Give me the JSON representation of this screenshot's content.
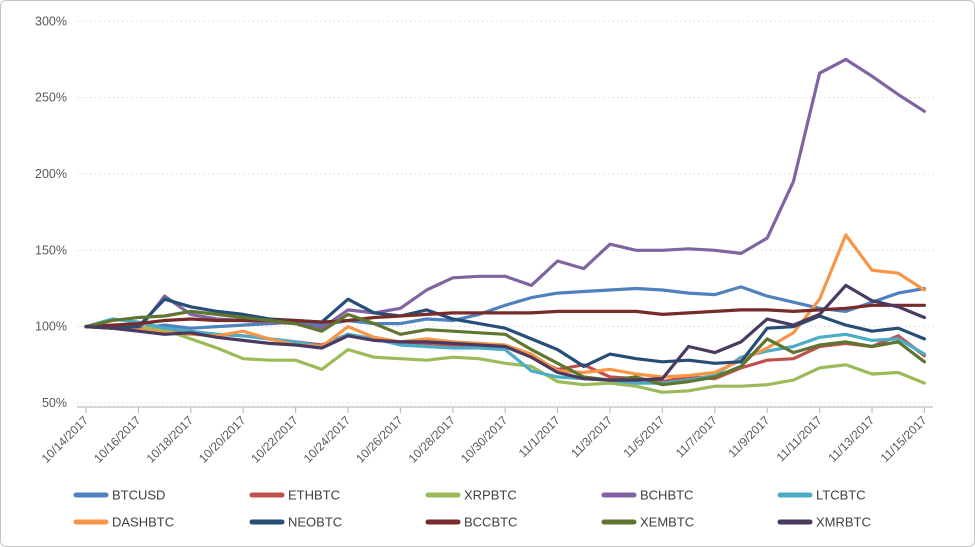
{
  "chart_data": {
    "type": "line",
    "title": "",
    "x_dates": [
      "10/14/2017",
      "10/15/2017",
      "10/16/2017",
      "10/17/2017",
      "10/18/2017",
      "10/19/2017",
      "10/20/2017",
      "10/21/2017",
      "10/22/2017",
      "10/23/2017",
      "10/24/2017",
      "10/25/2017",
      "10/26/2017",
      "10/27/2017",
      "10/28/2017",
      "10/29/2017",
      "10/30/2017",
      "10/31/2017",
      "11/1/2017",
      "11/2/2017",
      "11/3/2017",
      "11/4/2017",
      "11/5/2017",
      "11/6/2017",
      "11/7/2017",
      "11/8/2017",
      "11/9/2017",
      "11/10/2017",
      "11/11/2017",
      "11/12/2017",
      "11/13/2017",
      "11/14/2017",
      "11/15/2017"
    ],
    "x_tick_labels": [
      "10/14/2017",
      "10/16/2017",
      "10/18/2017",
      "10/20/2017",
      "10/22/2017",
      "10/24/2017",
      "10/26/2017",
      "10/28/2017",
      "10/30/2017",
      "11/1/2017",
      "11/3/2017",
      "11/5/2017",
      "11/7/2017",
      "11/9/2017",
      "11/11/2017",
      "11/13/2017",
      "11/15/2017"
    ],
    "y_tick_labels": [
      "300%",
      "250%",
      "200%",
      "150%",
      "100%",
      "50%"
    ],
    "y_axis": {
      "min": 50,
      "max": 300,
      "step": 50,
      "unit": "%"
    },
    "grid": "horizontal-dotted",
    "legend_position": "bottom",
    "legend_rows": 2,
    "series": [
      {
        "name": "BTCUSD",
        "color": "#4E81BD",
        "values": [
          100,
          100,
          99,
          101,
          99,
          100,
          101,
          102,
          103,
          101,
          104,
          102,
          102,
          105,
          104,
          108,
          114,
          119,
          122,
          123,
          124,
          125,
          124,
          122,
          121,
          126,
          120,
          116,
          112,
          110,
          116,
          122,
          125
        ]
      },
      {
        "name": "ETHBTC",
        "color": "#C0504D",
        "values": [
          100,
          100,
          99,
          97,
          96,
          95,
          94,
          92,
          90,
          88,
          95,
          92,
          90,
          89,
          88,
          88,
          87,
          80,
          72,
          75,
          67,
          66,
          64,
          67,
          66,
          73,
          78,
          79,
          87,
          89,
          87,
          94,
          81
        ]
      },
      {
        "name": "XRPBTC",
        "color": "#9BBB59",
        "values": [
          100,
          100,
          100,
          98,
          92,
          86,
          79,
          78,
          78,
          72,
          85,
          80,
          79,
          78,
          80,
          79,
          76,
          74,
          64,
          62,
          63,
          61,
          57,
          58,
          61,
          61,
          62,
          65,
          73,
          75,
          69,
          70,
          63
        ]
      },
      {
        "name": "BCHBTC",
        "color": "#8064A2",
        "values": [
          100,
          99,
          98,
          120,
          108,
          105,
          104,
          103,
          102,
          99,
          111,
          109,
          112,
          124,
          132,
          133,
          133,
          127,
          143,
          138,
          154,
          150,
          150,
          151,
          150,
          148,
          158,
          195,
          266,
          275,
          264,
          252,
          241
        ]
      },
      {
        "name": "LTCBTC",
        "color": "#4BACC6",
        "values": [
          100,
          105,
          103,
          99,
          97,
          95,
          94,
          92,
          90,
          87,
          95,
          92,
          88,
          87,
          86,
          86,
          85,
          71,
          67,
          66,
          65,
          63,
          63,
          65,
          68,
          80,
          84,
          87,
          93,
          95,
          91,
          92,
          82
        ]
      },
      {
        "name": "DASHBTC",
        "color": "#F79646",
        "values": [
          100,
          99,
          98,
          96,
          95,
          94,
          97,
          92,
          88,
          87,
          100,
          93,
          90,
          92,
          90,
          89,
          88,
          82,
          71,
          70,
          72,
          69,
          67,
          68,
          70,
          78,
          86,
          96,
          118,
          160,
          137,
          135,
          124
        ]
      },
      {
        "name": "NEOBTC",
        "color": "#264E77",
        "values": [
          100,
          99,
          100,
          118,
          113,
          110,
          108,
          105,
          104,
          103,
          118,
          109,
          107,
          111,
          105,
          102,
          99,
          92,
          85,
          74,
          82,
          79,
          77,
          78,
          76,
          77,
          99,
          100,
          107,
          101,
          97,
          99,
          92
        ]
      },
      {
        "name": "BCCBTC",
        "color": "#772C2A",
        "values": [
          100,
          101,
          102,
          104,
          105,
          104,
          104,
          104,
          104,
          103,
          104,
          106,
          107,
          108,
          109,
          109,
          109,
          109,
          110,
          110,
          110,
          110,
          108,
          109,
          110,
          111,
          111,
          110,
          111,
          112,
          114,
          114,
          114
        ]
      },
      {
        "name": "XEMBTC",
        "color": "#5F7530",
        "values": [
          100,
          104,
          106,
          107,
          110,
          108,
          106,
          104,
          102,
          97,
          108,
          102,
          95,
          98,
          97,
          96,
          95,
          85,
          76,
          67,
          65,
          67,
          62,
          64,
          67,
          74,
          92,
          83,
          88,
          90,
          87,
          90,
          77
        ]
      },
      {
        "name": "XMRBTC",
        "color": "#4A3960",
        "values": [
          100,
          99,
          97,
          95,
          96,
          93,
          91,
          89,
          88,
          86,
          94,
          91,
          90,
          90,
          89,
          88,
          87,
          80,
          70,
          66,
          65,
          65,
          66,
          87,
          83,
          90,
          105,
          101,
          108,
          127,
          117,
          113,
          106
        ]
      }
    ]
  },
  "style": {
    "axis_text_color": "#595959",
    "legend_text_color": "#404040",
    "gridline_color": "#D9D9D9",
    "axis_line_color": "#BFBFBF",
    "background": "#FFFFFF"
  }
}
